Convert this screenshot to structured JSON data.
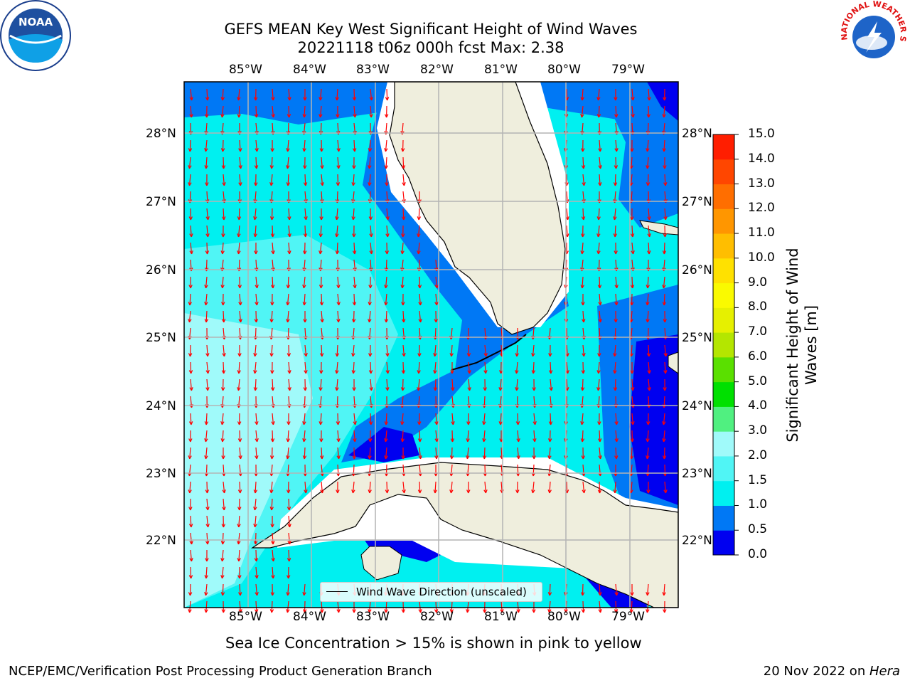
{
  "title_line1": "GEFS MEAN Key West Significant Height of Wind Waves",
  "title_line2": "20221118 t06z 000h fcst   Max: 2.38",
  "lon_ticks": [
    "85°W",
    "84°W",
    "83°W",
    "82°W",
    "81°W",
    "80°W",
    "79°W"
  ],
  "lat_ticks": [
    "28°N",
    "27°N",
    "26°N",
    "25°N",
    "24°N",
    "23°N",
    "22°N"
  ],
  "legend_label": "Wind Wave Direction (unscaled)",
  "colorbar": {
    "label_line1": "Significant Height of Wind",
    "label_line2": "Waves [m]",
    "ticks": [
      "0.0",
      "0.5",
      "1.0",
      "1.5",
      "2.0",
      "3.0",
      "4.0",
      "5.0",
      "6.0",
      "7.0",
      "8.0",
      "9.0",
      "10.0",
      "11.0",
      "12.0",
      "13.0",
      "14.0",
      "15.0"
    ],
    "colors": [
      "#0000f0",
      "#0078f5",
      "#00f0f0",
      "#50f5f5",
      "#a0fafa",
      "#50f080",
      "#00e000",
      "#5ae000",
      "#b4e600",
      "#e6f000",
      "#fafa00",
      "#ffe100",
      "#ffbe00",
      "#ff9600",
      "#ff6e00",
      "#ff4600",
      "#ff1e00",
      "#ff0000"
    ]
  },
  "footer_note": "Sea Ice Concentration > 15% is shown in pink to yellow",
  "footer_left": "NCEP/EMC/Verification Post Processing Product Generation Branch",
  "footer_right_date": "20 Nov 2022 on ",
  "footer_right_host": "Hera",
  "logo_noaa": "NOAA",
  "logo_nws": "NATIONAL WEATHER SERVICE",
  "colors": {
    "land": "#efeedd",
    "arrow": "#ff0000",
    "grid": "#b4b4b4"
  }
}
